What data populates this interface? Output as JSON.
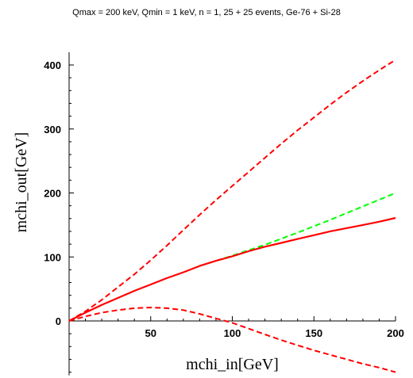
{
  "chart_data": {
    "type": "line",
    "title": "Qmax = 200 keV, Qmin = 1 keV, n = 1, 25 + 25 events, Ge-76 + Si-28",
    "xlabel": "mchi_in[GeV]",
    "ylabel": "mchi_out[GeV]",
    "xlim": [
      0,
      200
    ],
    "ylim": [
      -85,
      420
    ],
    "x_ticks": [
      50,
      100,
      150,
      200
    ],
    "y_ticks": [
      0,
      100,
      200,
      300,
      400
    ],
    "grid": false,
    "series": [
      {
        "color": "#ff0000",
        "style": "dashed",
        "x": [
          0,
          10,
          20,
          30,
          40,
          50,
          60,
          70,
          80,
          90,
          100,
          110,
          120,
          130,
          140,
          150,
          160,
          170,
          180,
          190,
          200
        ],
        "y": [
          0,
          15,
          33,
          53,
          73,
          95,
          118,
          142,
          166,
          189,
          211,
          233,
          255,
          277,
          298,
          318,
          338,
          357,
          375,
          392,
          408
        ]
      },
      {
        "color": "#00ff00",
        "style": "dashed",
        "x": [
          80,
          100,
          120,
          140,
          160,
          180,
          200
        ],
        "y": [
          86,
          102,
          119,
          138,
          158,
          179,
          200
        ]
      },
      {
        "color": "#ff0000",
        "style": "solid",
        "x": [
          0,
          10,
          20,
          30,
          40,
          50,
          60,
          70,
          80,
          90,
          100,
          110,
          120,
          130,
          140,
          150,
          160,
          170,
          180,
          190,
          200
        ],
        "y": [
          0,
          13,
          25,
          36,
          47,
          57,
          67,
          76,
          86,
          94,
          101,
          109,
          116,
          122,
          128,
          134,
          140,
          145,
          150,
          155,
          161
        ]
      },
      {
        "color": "#ff0000",
        "style": "dashed",
        "x": [
          0,
          10,
          20,
          30,
          40,
          50,
          60,
          70,
          80,
          90,
          100,
          110,
          120,
          130,
          140,
          150,
          160,
          170,
          180,
          190,
          200
        ],
        "y": [
          0,
          7,
          13,
          17,
          20,
          21,
          20,
          17,
          11,
          4,
          -3,
          -12,
          -21,
          -30,
          -38,
          -46,
          -53,
          -60,
          -67,
          -73,
          -80
        ]
      }
    ]
  }
}
